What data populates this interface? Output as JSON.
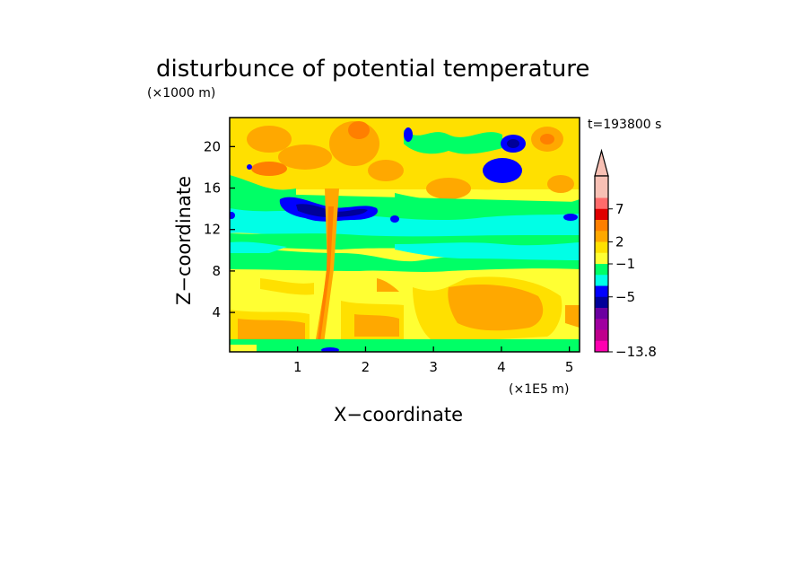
{
  "chart_data": {
    "type": "heatmap",
    "title": "disturbunce of potential temperature",
    "y_unit_label": "(×1000 m)",
    "x_unit_label": "(×1E5 m)",
    "time_label": "t=193800 s",
    "xlabel": "X−coordinate",
    "ylabel": "Z−coordinate",
    "xlim": [
      0,
      5.15
    ],
    "ylim": [
      0.2,
      22.8
    ],
    "x_ticks": [
      "1",
      "2",
      "3",
      "4",
      "5"
    ],
    "y_ticks": [
      "4",
      "8",
      "12",
      "16",
      "20"
    ],
    "x_tick_values": [
      1,
      2,
      3,
      4,
      5
    ],
    "y_tick_values": [
      4,
      8,
      12,
      16,
      20
    ],
    "colorbar": {
      "labels": [
        "7",
        "2",
        "−1",
        "−5",
        "−13.8"
      ],
      "colors_top_to_bottom": [
        "#f7c0b4",
        "#f7c0b4",
        "#ff6b6b",
        "#e00000",
        "#ff7f00",
        "#ffa800",
        "#ffe000",
        "#ffff33",
        "#00ff66",
        "#00ffe6",
        "#0000ff",
        "#000099",
        "#6b00a0",
        "#a000a0",
        "#c0008c",
        "#ff00b0"
      ],
      "extend_top": true
    },
    "field_description_rows": [
      {
        "z_range": [
          0.2,
          1.5
        ],
        "level": "green/yellow"
      },
      {
        "z_range": [
          1.5,
          6.5
        ],
        "level": "yellow/orange"
      },
      {
        "z_range": [
          6.5,
          9
        ],
        "level": "yellow"
      },
      {
        "z_range": [
          9,
          11
        ],
        "level": "green/cyan"
      },
      {
        "z_range": [
          11,
          14.5
        ],
        "level": "cyan/green with blue core"
      },
      {
        "z_range": [
          14.5,
          22.8
        ],
        "level": "yellow/orange waves with blue patches"
      }
    ]
  }
}
